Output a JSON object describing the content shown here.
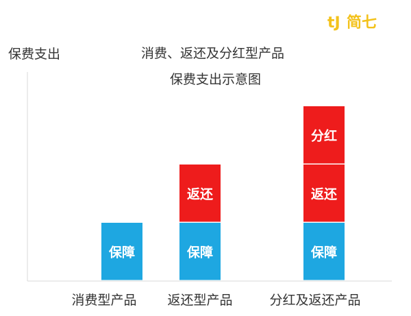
{
  "brand": {
    "mark": "tJ",
    "name": "简七",
    "color": "#f3c21c"
  },
  "chart_data": {
    "type": "bar",
    "stacked": true,
    "title": "消费、返还及分红型产品",
    "subtitle": "保费支出示意图",
    "ylabel": "保费支出",
    "xlabel": "",
    "ylim": [
      0,
      3
    ],
    "grid": false,
    "legend": "none",
    "categories": [
      "消费型产品",
      "返还型产品",
      "分红及返还产品"
    ],
    "series": [
      {
        "name": "保障",
        "color": "#1ea7e1",
        "values": [
          1,
          1,
          1
        ]
      },
      {
        "name": "返还",
        "color": "#ee1c1c",
        "values": [
          0,
          1,
          1
        ]
      },
      {
        "name": "分红",
        "color": "#ee1c1c",
        "values": [
          0,
          0,
          1
        ]
      }
    ]
  }
}
